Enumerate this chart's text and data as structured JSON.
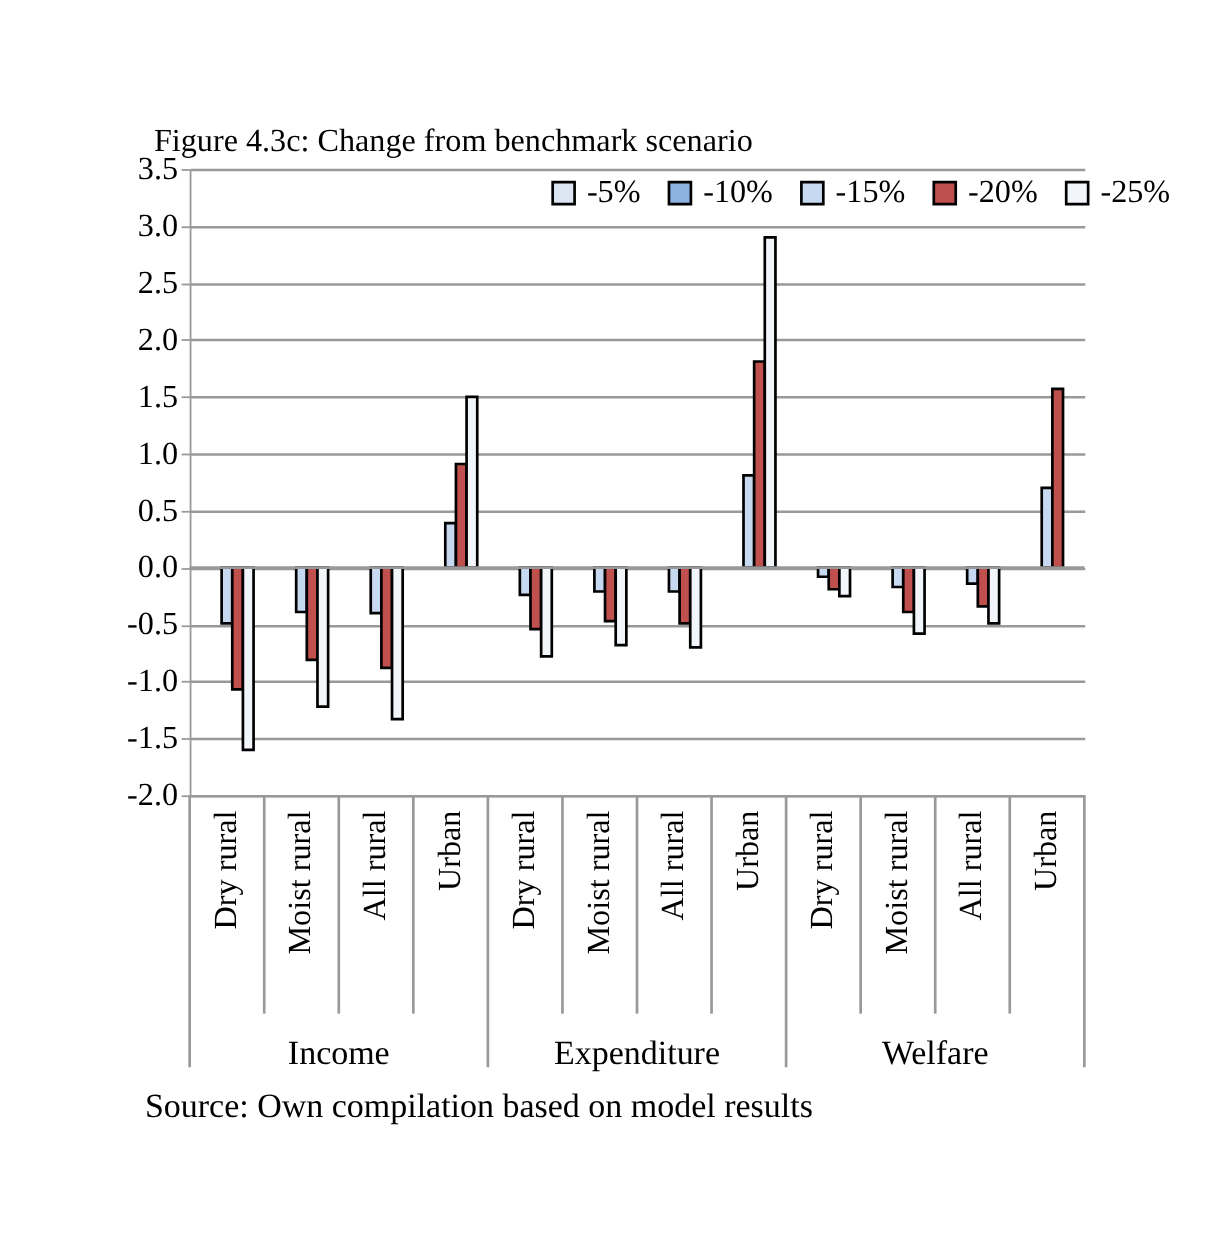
{
  "chart_data": {
    "type": "bar",
    "title": "Figure 4.3c: Change from benchmark scenario",
    "categories": [
      "Dry rural",
      "Moist rural",
      "All rural",
      "Urban",
      "Dry rural",
      "Moist rural",
      "All rural",
      "Urban",
      "Dry rural",
      "Moist rural",
      "All rural",
      "Urban"
    ],
    "series": [
      {
        "name": "-5%",
        "color": "#dce6f2",
        "values": [
          null,
          null,
          null,
          null,
          null,
          null,
          null,
          null,
          null,
          null,
          null,
          null
        ]
      },
      {
        "name": "-10%",
        "color": "#8db3e2",
        "values": [
          null,
          null,
          null,
          null,
          null,
          null,
          null,
          null,
          null,
          null,
          null,
          null
        ]
      },
      {
        "name": "-15%",
        "color": "#c6d9f1",
        "values": [
          -0.49,
          -0.39,
          -0.4,
          0.39,
          -0.24,
          -0.21,
          -0.21,
          0.81,
          -0.08,
          -0.17,
          -0.14,
          0.7
        ]
      },
      {
        "name": "-20%",
        "color": "#c0504d",
        "values": [
          -1.07,
          -0.81,
          -0.88,
          0.91,
          -0.54,
          -0.47,
          -0.49,
          1.81,
          -0.19,
          -0.39,
          -0.34,
          1.57
        ]
      },
      {
        "name": "-25%",
        "color": "#f2f6fb",
        "values": [
          -1.6,
          -1.22,
          -1.33,
          1.5,
          -0.78,
          -0.68,
          -0.7,
          2.9,
          -0.25,
          -0.58,
          -0.49,
          null
        ]
      }
    ],
    "ylim": [
      -2,
      3.5
    ],
    "yticks": [
      {
        "value": -2,
        "label": "-2.0"
      },
      -1.5,
      {
        "value": -1,
        "label": "-1.0"
      },
      -0.5,
      {
        "value": 0,
        "label": "0.0"
      },
      0.5,
      {
        "value": 1,
        "label": "1.0"
      },
      1.5,
      {
        "value": 2,
        "label": "2.0"
      },
      2.5,
      {
        "value": 3,
        "label": "3.0"
      },
      3.5
    ],
    "grid": "y",
    "legend": "top right",
    "annotations": [
      "Income",
      "Expenditure",
      "Welfare",
      "Source: Own compilation based on model results"
    ]
  }
}
